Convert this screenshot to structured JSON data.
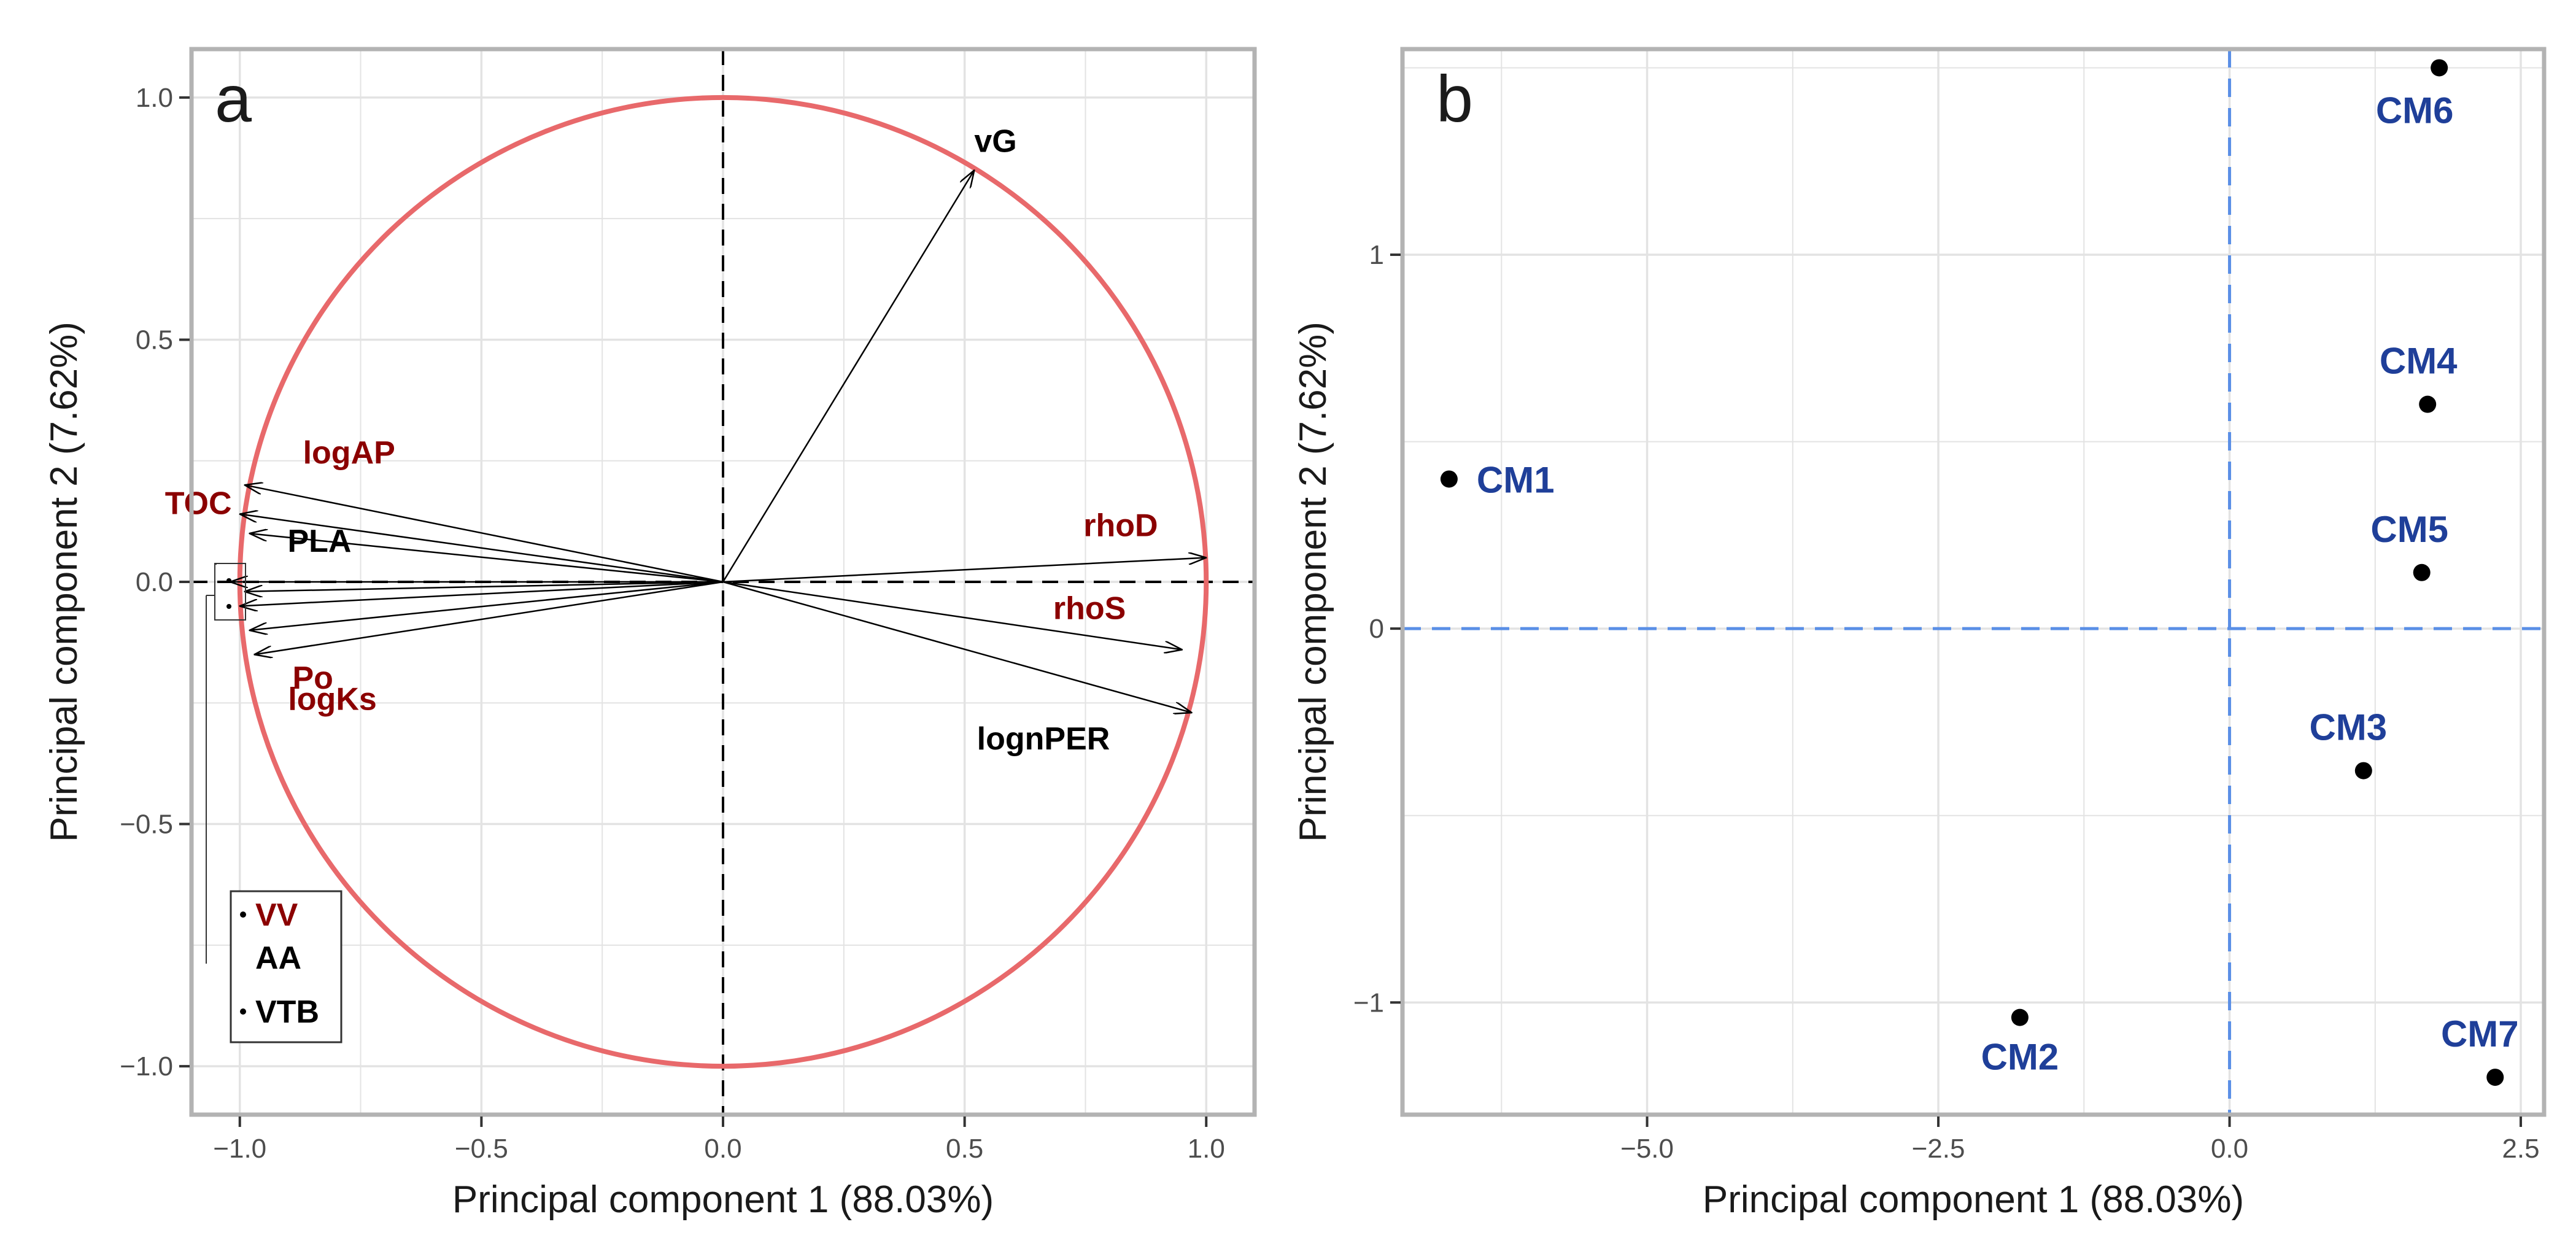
{
  "colors": {
    "circle": "#e8696b",
    "dark_red": "#8b0000",
    "black": "#000000",
    "blue_text": "#1f3f99",
    "blue_dash": "#5a8fe6",
    "grid": "#e3e3e3",
    "panel_border": "#b3b3b3"
  },
  "chart_data": [
    {
      "panel": "a",
      "type": "scatter",
      "subtype": "correlation-circle",
      "xlabel": "Principal component 1 (88.03%)",
      "ylabel": "Principal component 2 (7.62%)",
      "xlim": [
        -1.1,
        1.1
      ],
      "ylim": [
        -1.1,
        1.1
      ],
      "xticks": [
        -1.0,
        -0.5,
        0.0,
        0.5,
        1.0
      ],
      "xtick_labels": [
        "−1.0",
        "−0.5",
        "0.0",
        "0.5",
        "1.0"
      ],
      "yticks": [
        1.0,
        0.5,
        0.0,
        -0.5,
        -1.0
      ],
      "ytick_labels": [
        "1.0",
        "0.5",
        "0.0",
        "−0.5",
        "−1.0"
      ],
      "vectors": [
        {
          "name": "vG",
          "x": 0.52,
          "y": 0.85,
          "color": "black"
        },
        {
          "name": "logAP",
          "x": -0.99,
          "y": 0.2,
          "color": "dark_red"
        },
        {
          "name": "TOC",
          "x": -1.0,
          "y": 0.14,
          "color": "dark_red"
        },
        {
          "name": "PLA",
          "x": -0.98,
          "y": 0.1,
          "color": "black"
        },
        {
          "name": "rhoD",
          "x": 1.0,
          "y": 0.05,
          "color": "dark_red"
        },
        {
          "name": "rhoS",
          "x": 0.95,
          "y": -0.14,
          "color": "dark_red"
        },
        {
          "name": "lognPER",
          "x": 0.97,
          "y": -0.27,
          "color": "black"
        },
        {
          "name": "Po",
          "x": -0.98,
          "y": -0.1,
          "color": "dark_red"
        },
        {
          "name": "logKs",
          "x": -0.97,
          "y": -0.15,
          "color": "dark_red"
        },
        {
          "name": "VV",
          "x": -1.02,
          "y": 0.0,
          "color": "dark_red"
        },
        {
          "name": "AA",
          "x": -1.0,
          "y": -0.05,
          "color": "black"
        },
        {
          "name": "VTB",
          "x": -0.99,
          "y": -0.02,
          "color": "black"
        }
      ],
      "inset_legend": [
        {
          "name": "VV",
          "color": "dark_red"
        },
        {
          "name": "AA",
          "color": "black"
        },
        {
          "name": "VTB",
          "color": "black"
        }
      ],
      "panel_label": "a"
    },
    {
      "panel": "b",
      "type": "scatter",
      "xlabel": "Principal component 1 (88.03%)",
      "ylabel": "Principal component 2 (7.62%)",
      "xlim": [
        -7.1,
        2.7
      ],
      "ylim": [
        -1.3,
        1.55
      ],
      "xticks": [
        -5.0,
        -2.5,
        0.0,
        2.5
      ],
      "xtick_labels": [
        "−5.0",
        "−2.5",
        "0.0",
        "2.5"
      ],
      "yticks": [
        1,
        0,
        -1
      ],
      "ytick_labels": [
        "1",
        "0",
        "−1"
      ],
      "points": [
        {
          "name": "CM1",
          "x": -6.7,
          "y": 0.4
        },
        {
          "name": "CM2",
          "x": -1.8,
          "y": -1.04
        },
        {
          "name": "CM3",
          "x": 1.15,
          "y": -0.38
        },
        {
          "name": "CM4",
          "x": 1.7,
          "y": 0.6
        },
        {
          "name": "CM5",
          "x": 1.65,
          "y": 0.15
        },
        {
          "name": "CM6",
          "x": 1.8,
          "y": 1.5
        },
        {
          "name": "CM7",
          "x": 2.28,
          "y": -1.2
        }
      ],
      "panel_label": "b"
    }
  ]
}
